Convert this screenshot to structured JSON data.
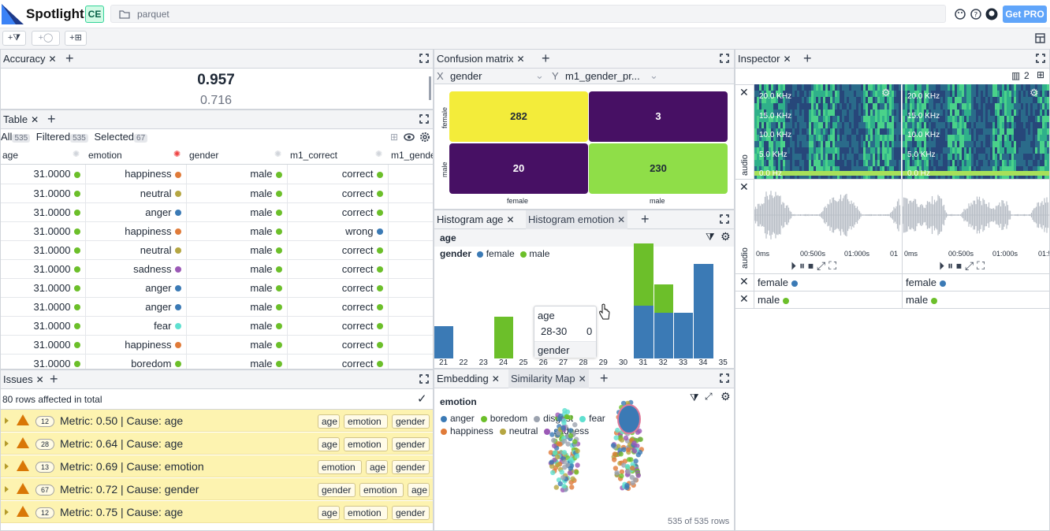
{
  "app": {
    "name": "Spotlight",
    "edition": "CE",
    "path": "parquet",
    "get_pro": "Get PRO"
  },
  "colors": {
    "blue": "#3b7ab5",
    "green": "#6cbf2a",
    "olive": "#b5a642",
    "orange": "#e07b39",
    "purple": "#9b59b6",
    "teal": "#5fe0d0"
  },
  "accuracy": {
    "tab": "Accuracy",
    "value": "0.957",
    "secondary": "0.716"
  },
  "table": {
    "tab": "Table",
    "filters": {
      "all_label": "All",
      "all_count": "535",
      "filtered_label": "Filtered",
      "filtered_count": "535",
      "selected_label": "Selected",
      "selected_count": "67"
    },
    "columns": [
      "age",
      "emotion",
      "gender",
      "m1_correct",
      "m1_gende"
    ],
    "rows": [
      {
        "age": "31.0000",
        "emotion": "happiness",
        "emotion_color": "#e07b39",
        "gender": "male",
        "m1": "correct",
        "m1_color": "#6cbf2a"
      },
      {
        "age": "31.0000",
        "emotion": "neutral",
        "emotion_color": "#b5a642",
        "gender": "male",
        "m1": "correct",
        "m1_color": "#6cbf2a"
      },
      {
        "age": "31.0000",
        "emotion": "anger",
        "emotion_color": "#3b7ab5",
        "gender": "male",
        "m1": "correct",
        "m1_color": "#6cbf2a"
      },
      {
        "age": "31.0000",
        "emotion": "happiness",
        "emotion_color": "#e07b39",
        "gender": "male",
        "m1": "wrong",
        "m1_color": "#3b7ab5"
      },
      {
        "age": "31.0000",
        "emotion": "neutral",
        "emotion_color": "#b5a642",
        "gender": "male",
        "m1": "correct",
        "m1_color": "#6cbf2a"
      },
      {
        "age": "31.0000",
        "emotion": "sadness",
        "emotion_color": "#9b59b6",
        "gender": "male",
        "m1": "correct",
        "m1_color": "#6cbf2a"
      },
      {
        "age": "31.0000",
        "emotion": "anger",
        "emotion_color": "#3b7ab5",
        "gender": "male",
        "m1": "correct",
        "m1_color": "#6cbf2a"
      },
      {
        "age": "31.0000",
        "emotion": "anger",
        "emotion_color": "#3b7ab5",
        "gender": "male",
        "m1": "correct",
        "m1_color": "#6cbf2a"
      },
      {
        "age": "31.0000",
        "emotion": "fear",
        "emotion_color": "#5fe0d0",
        "gender": "male",
        "m1": "correct",
        "m1_color": "#6cbf2a"
      },
      {
        "age": "31.0000",
        "emotion": "happiness",
        "emotion_color": "#e07b39",
        "gender": "male",
        "m1": "correct",
        "m1_color": "#6cbf2a"
      },
      {
        "age": "31.0000",
        "emotion": "boredom",
        "emotion_color": "#6cbf2a",
        "gender": "male",
        "m1": "correct",
        "m1_color": "#6cbf2a"
      }
    ]
  },
  "issues": {
    "tab": "Issues",
    "summary": "80 rows affected in total",
    "items": [
      {
        "count": "12",
        "text": "Metric: 0.50 | Cause: age",
        "chips": [
          "age",
          "emotion",
          "gender"
        ]
      },
      {
        "count": "28",
        "text": "Metric: 0.64 | Cause: age",
        "chips": [
          "age",
          "emotion",
          "gender"
        ]
      },
      {
        "count": "13",
        "text": "Metric: 0.69 | Cause: emotion",
        "chips": [
          "emotion",
          "age",
          "gender"
        ]
      },
      {
        "count": "67",
        "text": "Metric: 0.72 | Cause: gender",
        "chips": [
          "gender",
          "emotion",
          "age"
        ]
      },
      {
        "count": "12",
        "text": "Metric: 0.75 | Cause: age",
        "chips": [
          "age",
          "emotion",
          "gender"
        ]
      }
    ]
  },
  "confusion": {
    "tab": "Confusion matrix",
    "x_label": "X",
    "x_value": "gender",
    "y_label": "Y",
    "y_value": "m1_gender_pr...",
    "row_labels": [
      "female",
      "male"
    ],
    "col_labels": [
      "female",
      "male"
    ],
    "cells": [
      {
        "v": "282",
        "c": "#f3ec3a"
      },
      {
        "v": "3",
        "c": "#471064"
      },
      {
        "v": "20",
        "c": "#471064"
      },
      {
        "v": "230",
        "c": "#8fde48"
      }
    ]
  },
  "histogram": {
    "tab1": "Histogram age",
    "tab2": "Histogram emotion",
    "column": "age",
    "legend_title": "gender",
    "legend": [
      "female",
      "male"
    ],
    "tooltip": {
      "title": "age",
      "range": "28-30",
      "value": "0",
      "footer": "gender"
    }
  },
  "chart_data": {
    "type": "bar",
    "stacked": true,
    "categories": [
      "21",
      "22",
      "23",
      "24",
      "25",
      "26",
      "27",
      "28",
      "29",
      "30",
      "31",
      "32",
      "33",
      "34",
      "35"
    ],
    "series": [
      {
        "name": "female",
        "values": [
          34,
          0,
          0,
          0,
          0,
          0,
          0,
          0,
          0,
          0,
          56,
          48,
          48,
          100,
          0
        ]
      },
      {
        "name": "male",
        "values": [
          0,
          0,
          0,
          44,
          0,
          0,
          0,
          0,
          0,
          0,
          66,
          30,
          0,
          0,
          0
        ]
      }
    ],
    "x": [
      21,
      22,
      23,
      24,
      25,
      26,
      27,
      28,
      29,
      30,
      31,
      32,
      33,
      34,
      35
    ],
    "xlabel": "",
    "ylabel": ""
  },
  "embedding": {
    "tab1": "Embedding",
    "tab2": "Similarity Map",
    "legend_title": "emotion",
    "legend": [
      {
        "n": "anger",
        "c": "#3b7ab5"
      },
      {
        "n": "boredom",
        "c": "#6cbf2a"
      },
      {
        "n": "disgust",
        "c": "#9ca3af"
      },
      {
        "n": "fear",
        "c": "#5fe0d0"
      },
      {
        "n": "happiness",
        "c": "#e07b39"
      },
      {
        "n": "neutral",
        "c": "#b5a642"
      },
      {
        "n": "sadness",
        "c": "#9b59b6"
      }
    ],
    "footer": "535 of 535 rows"
  },
  "inspector": {
    "tab": "Inspector",
    "count": "2",
    "audio_label": "audio",
    "freq_labels": [
      "20.0 KHz",
      "15.0 KHz",
      "10.0 KHz",
      "5.0 KHz",
      "0.0 Hz"
    ],
    "time_labels_1": [
      "0ms",
      "00:500s",
      "01:000s",
      "01"
    ],
    "time_labels_2": [
      "0ms",
      "00:500s",
      "01:000s",
      "01:5"
    ],
    "rows": [
      {
        "a": "female",
        "b": "female",
        "c": "#3b7ab5"
      },
      {
        "a": "male",
        "b": "male",
        "c": "#6cbf2a"
      }
    ]
  }
}
